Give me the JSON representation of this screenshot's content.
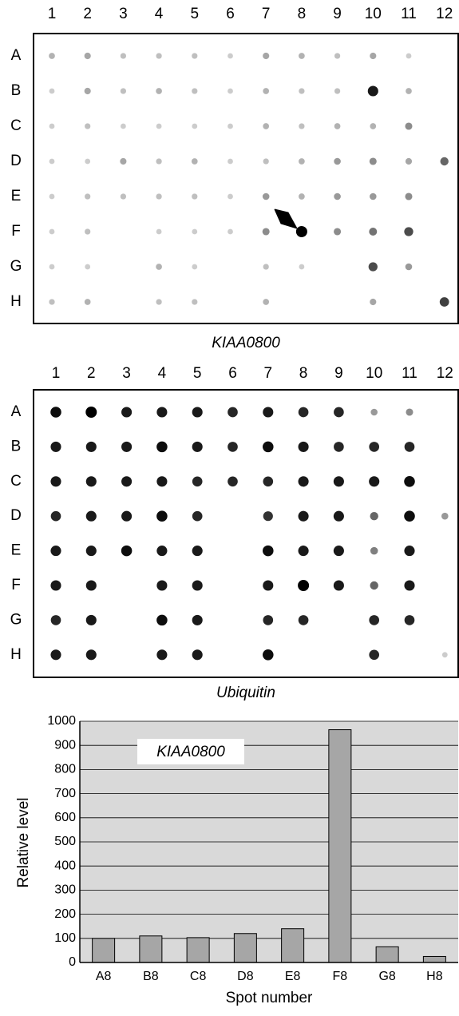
{
  "blots": [
    {
      "columns": [
        "1",
        "2",
        "3",
        "4",
        "5",
        "6",
        "7",
        "8",
        "9",
        "10",
        "11",
        "12"
      ],
      "rows": [
        "A",
        "B",
        "C",
        "D",
        "E",
        "F",
        "G",
        "H"
      ],
      "caption": "KIAA0800",
      "spots": [
        [
          0.3,
          0.35,
          0.25,
          0.25,
          0.25,
          0.2,
          0.35,
          0.3,
          0.25,
          0.35,
          0.2,
          0
        ],
        [
          0.2,
          0.35,
          0.25,
          0.3,
          0.25,
          0.2,
          0.3,
          0.25,
          0.25,
          0.9,
          0.3,
          0
        ],
        [
          0.2,
          0.25,
          0.2,
          0.2,
          0.2,
          0.2,
          0.3,
          0.25,
          0.3,
          0.3,
          0.45,
          0
        ],
        [
          0.2,
          0.2,
          0.35,
          0.25,
          0.3,
          0.2,
          0.25,
          0.3,
          0.4,
          0.45,
          0.35,
          0.6
        ],
        [
          0.2,
          0.25,
          0.25,
          0.25,
          0.25,
          0.2,
          0.4,
          0.3,
          0.4,
          0.4,
          0.45,
          0
        ],
        [
          0.2,
          0.25,
          0,
          0.2,
          0.2,
          0.2,
          0.45,
          1,
          0.45,
          0.55,
          0.7,
          0
        ],
        [
          0.2,
          0.2,
          0,
          0.3,
          0.2,
          0,
          0.25,
          0.2,
          0,
          0.7,
          0.4,
          0
        ],
        [
          0.25,
          0.3,
          0,
          0.25,
          0.25,
          0,
          0.3,
          0,
          0,
          0.35,
          0,
          0.75
        ]
      ]
    },
    {
      "columns": [
        "1",
        "2",
        "3",
        "4",
        "5",
        "6",
        "7",
        "8",
        "9",
        "10",
        "11",
        "12"
      ],
      "rows": [
        "A",
        "B",
        "C",
        "D",
        "E",
        "F",
        "G",
        "H"
      ],
      "caption": "Ubiquitin",
      "spots": [
        [
          0.95,
          1,
          0.9,
          0.9,
          0.9,
          0.85,
          0.9,
          0.85,
          0.85,
          0.4,
          0.45,
          0
        ],
        [
          0.9,
          0.9,
          0.9,
          0.95,
          0.9,
          0.85,
          0.95,
          0.9,
          0.85,
          0.85,
          0.85,
          0
        ],
        [
          0.9,
          0.9,
          0.9,
          0.9,
          0.85,
          0.85,
          0.85,
          0.9,
          0.9,
          0.9,
          0.95,
          0
        ],
        [
          0.85,
          0.9,
          0.9,
          0.95,
          0.85,
          0,
          0.8,
          0.9,
          0.9,
          0.6,
          0.95,
          0.4
        ],
        [
          0.9,
          0.9,
          0.95,
          0.9,
          0.9,
          0,
          0.95,
          0.9,
          0.9,
          0.5,
          0.9,
          0
        ],
        [
          0.9,
          0.9,
          0,
          0.9,
          0.9,
          0,
          0.9,
          1,
          0.9,
          0.6,
          0.9,
          0
        ],
        [
          0.85,
          0.9,
          0,
          0.95,
          0.9,
          0,
          0.85,
          0.85,
          0,
          0.85,
          0.85,
          0
        ],
        [
          0.9,
          0.9,
          0,
          0.9,
          0.9,
          0,
          0.95,
          0,
          0,
          0.85,
          0,
          0.2
        ]
      ]
    }
  ],
  "chart_data": {
    "type": "bar",
    "annotation": "KIAA0800",
    "x_label": "Spot number",
    "y_label": "Relative level",
    "categories": [
      "A8",
      "B8",
      "C8",
      "D8",
      "E8",
      "F8",
      "G8",
      "H8"
    ],
    "values": [
      100,
      110,
      103,
      120,
      140,
      965,
      65,
      25
    ],
    "color": "#a6a6a6",
    "ylim": [
      0,
      1000
    ],
    "yticks": [
      0,
      100,
      200,
      300,
      400,
      500,
      600,
      700,
      800,
      900,
      1000
    ],
    "grid": true
  }
}
